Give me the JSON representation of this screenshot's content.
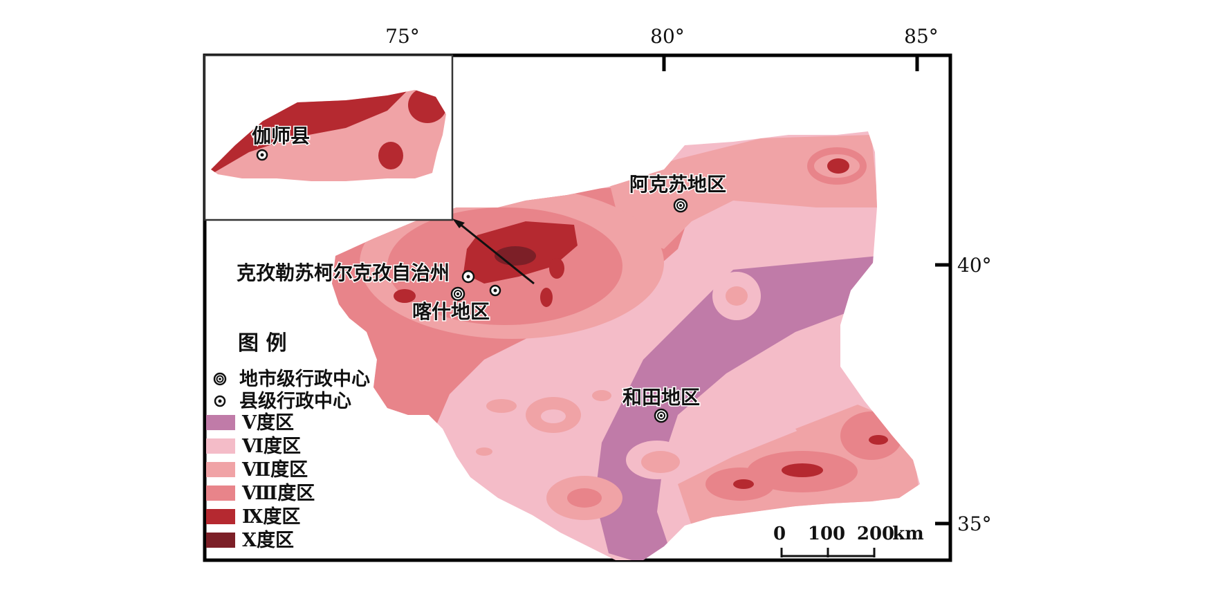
{
  "map": {
    "longitude_ticks": [
      "75°",
      "80°",
      "85°"
    ],
    "latitude_ticks": [
      "40°",
      "35°"
    ],
    "colors": {
      "zone_V": "#c07ba8",
      "zone_VI": "#f4bcc8",
      "zone_VII": "#f0a3a6",
      "zone_VIII": "#e8848a",
      "zone_IX": "#b52930",
      "zone_X": "#7c1f27"
    },
    "places": {
      "inset_county": "伽师县",
      "aksu": "阿克苏地区",
      "kizilsu": "克孜勒苏柯尔克孜自治州",
      "kashgar": "喀什地区",
      "hotan": "和田地区"
    },
    "legend": {
      "title": "图  例",
      "prefecture_center": "地市级行政中心",
      "county_center": "县级行政中心",
      "zones": [
        {
          "label": "Ⅴ度区"
        },
        {
          "label": "Ⅵ度区"
        },
        {
          "label": "Ⅶ度区"
        },
        {
          "label": "Ⅷ度区"
        },
        {
          "label": "Ⅸ度区"
        },
        {
          "label": "Ⅹ度区"
        }
      ]
    },
    "scale_bar": {
      "labels": [
        "0",
        "100",
        "200"
      ],
      "unit": "km"
    }
  }
}
